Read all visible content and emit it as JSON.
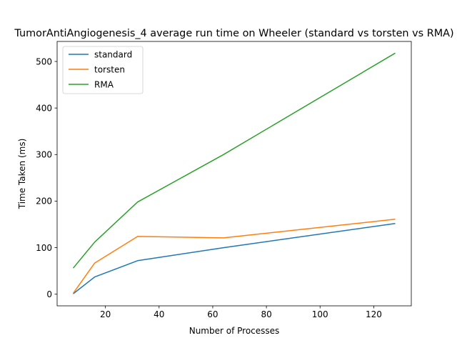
{
  "chart_data": {
    "type": "line",
    "title": "TumorAntiAngiogenesis_4 average run time on Wheeler (standard vs torsten vs RMA)",
    "xlabel": "Number of Processes",
    "ylabel": "Time Taken (ms)",
    "xlim": [
      2,
      134
    ],
    "ylim": [
      -25,
      543
    ],
    "xticks": [
      20,
      40,
      60,
      80,
      100,
      120
    ],
    "yticks": [
      0,
      100,
      200,
      300,
      400,
      500
    ],
    "grid": false,
    "legend_position": "top-left",
    "series": [
      {
        "name": "standard",
        "color": "#1f77b4",
        "x": [
          8,
          16,
          32,
          64,
          128
        ],
        "y": [
          1,
          37,
          72,
          100,
          152
        ]
      },
      {
        "name": "torsten",
        "color": "#ff7f0e",
        "x": [
          8,
          16,
          32,
          64,
          128
        ],
        "y": [
          2,
          67,
          124,
          121,
          161
        ]
      },
      {
        "name": "RMA",
        "color": "#2ca02c",
        "x": [
          8,
          16,
          32,
          64,
          128
        ],
        "y": [
          56,
          112,
          198,
          300,
          518
        ]
      }
    ]
  }
}
